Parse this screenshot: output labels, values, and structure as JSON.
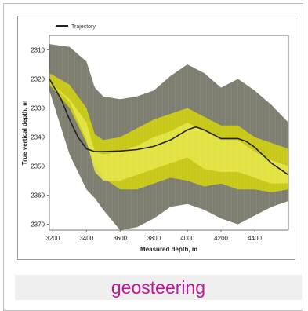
{
  "caption": "geosteering",
  "chart_data": {
    "type": "area",
    "title": "",
    "xlabel": "Measured depth, m",
    "ylabel": "True vertical depth, m",
    "xlim": [
      3180,
      4600
    ],
    "ylim": [
      2305,
      2372
    ],
    "y_inverted": true,
    "xticks": [
      3200,
      3400,
      3600,
      3800,
      4000,
      4200,
      4400
    ],
    "yticks": [
      2310,
      2320,
      2330,
      2340,
      2350,
      2360,
      2370
    ],
    "legend": {
      "entries": [
        "Trajectory"
      ],
      "placement": "top-left"
    },
    "series": [
      {
        "name": "Trajectory",
        "x": [
          3180,
          3250,
          3300,
          3350,
          3400,
          3450,
          3500,
          3600,
          3700,
          3800,
          3900,
          4000,
          4050,
          4100,
          4200,
          4300,
          4350,
          4400,
          4500,
          4600
        ],
        "y": [
          2320,
          2327,
          2334,
          2340,
          2344,
          2345,
          2345,
          2344.8,
          2344.3,
          2343.2,
          2341,
          2337.5,
          2336.5,
          2337.5,
          2340.5,
          2340.5,
          2341.5,
          2343.5,
          2349,
          2353
        ]
      }
    ],
    "bands": {
      "x": [
        3180,
        3300,
        3400,
        3450,
        3500,
        3600,
        3700,
        3800,
        3900,
        4000,
        4100,
        4200,
        4300,
        4400,
        4500,
        4600
      ],
      "gray_outer_top": [
        2308,
        2309,
        2314,
        2323,
        2326,
        2327,
        2326,
        2324,
        2319,
        2315,
        2318,
        2323,
        2320,
        2324,
        2329,
        2335
      ],
      "gray_outer_bottom": [
        2324,
        2346,
        2358,
        2361,
        2365,
        2372,
        2371,
        2368,
        2364,
        2363,
        2365,
        2368,
        2370,
        2367,
        2364,
        2362
      ],
      "yellow_top": [
        2318,
        2322,
        2330,
        2339,
        2341,
        2340,
        2337,
        2334,
        2332,
        2330,
        2333,
        2336,
        2336,
        2340,
        2342,
        2344
      ],
      "yellow_bottom": [
        2322,
        2330,
        2342,
        2350,
        2354,
        2358,
        2358,
        2356,
        2354,
        2355,
        2357,
        2356,
        2358,
        2358,
        2359,
        2358
      ],
      "yellow_inner_top": [
        2321,
        2327,
        2335,
        2345,
        2346,
        2345,
        2343,
        2340,
        2338,
        2335,
        2338,
        2341,
        2341,
        2345,
        2348,
        2350
      ],
      "yellow_inner_bottom": [
        2321,
        2328,
        2341,
        2352,
        2355,
        2355,
        2353,
        2351,
        2349,
        2347,
        2351,
        2352,
        2352,
        2354,
        2356,
        2356
      ],
      "colors": {
        "gray": "#7d7d70",
        "yellow": "#c8c818",
        "yellow_light": "#e6e64a",
        "trajectory": "#222222"
      }
    }
  }
}
